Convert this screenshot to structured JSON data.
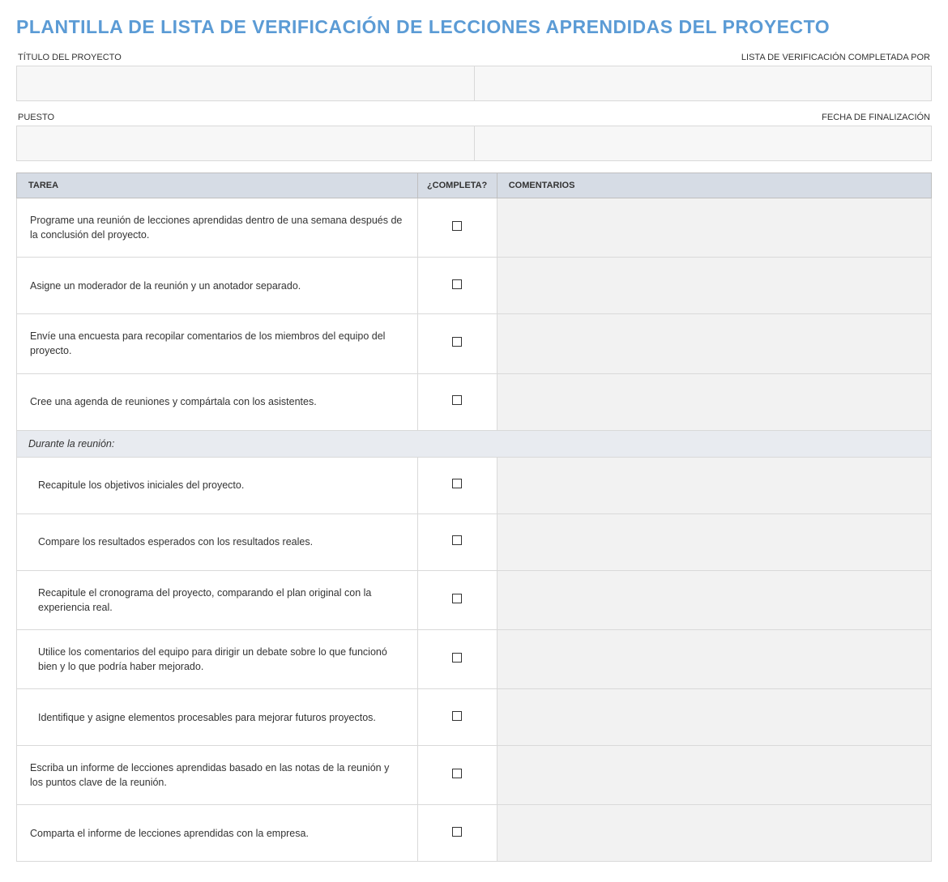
{
  "title": "PLANTILLA DE LISTA DE VERIFICACIÓN DE LECCIONES APRENDIDAS DEL PROYECTO",
  "meta": {
    "project_title_label": "TÍTULO DEL PROYECTO",
    "completed_by_label": "LISTA DE VERIFICACIÓN COMPLETADA POR",
    "position_label": "PUESTO",
    "completion_date_label": "FECHA DE FINALIZACIÓN",
    "project_title_value": "",
    "completed_by_value": "",
    "position_value": "",
    "completion_date_value": ""
  },
  "columns": {
    "task": "TAREA",
    "complete": "¿COMPLETA?",
    "comments": "COMENTARIOS"
  },
  "rows": [
    {
      "type": "task",
      "indent": false,
      "task": "Programe una reunión de lecciones aprendidas dentro de una semana después de la conclusión del proyecto.",
      "complete": false,
      "comment": ""
    },
    {
      "type": "task",
      "indent": false,
      "task": "Asigne un moderador de la reunión y un anotador separado.",
      "complete": false,
      "comment": ""
    },
    {
      "type": "task",
      "indent": false,
      "task": "Envíe una encuesta para recopilar comentarios de los miembros del equipo del proyecto.",
      "complete": false,
      "comment": ""
    },
    {
      "type": "task",
      "indent": false,
      "task": "Cree una agenda de reuniones y compártala con los asistentes.",
      "complete": false,
      "comment": ""
    },
    {
      "type": "section",
      "task": "Durante la reunión:"
    },
    {
      "type": "task",
      "indent": true,
      "task": "Recapitule los objetivos iniciales del proyecto.",
      "complete": false,
      "comment": ""
    },
    {
      "type": "task",
      "indent": true,
      "task": "Compare los resultados esperados con los resultados reales.",
      "complete": false,
      "comment": ""
    },
    {
      "type": "task",
      "indent": true,
      "task": "Recapitule el cronograma del proyecto, comparando el plan original con la experiencia real.",
      "complete": false,
      "comment": ""
    },
    {
      "type": "task",
      "indent": true,
      "task": "Utilice los comentarios del equipo para dirigir un debate sobre lo que funcionó bien y lo que podría haber mejorado.",
      "complete": false,
      "comment": ""
    },
    {
      "type": "task",
      "indent": true,
      "task": "Identifique y asigne elementos procesables para mejorar futuros proyectos.",
      "complete": false,
      "comment": ""
    },
    {
      "type": "task",
      "indent": false,
      "task": "Escriba un informe de lecciones aprendidas basado en las notas de la reunión y los puntos clave de la reunión.",
      "complete": false,
      "comment": ""
    },
    {
      "type": "task",
      "indent": false,
      "task": "Comparta el informe de lecciones aprendidas con la empresa.",
      "complete": false,
      "comment": ""
    }
  ],
  "style": {
    "title_color": "#5b9bd5",
    "header_bg": "#d6dce5",
    "section_bg": "#e8ebf0",
    "comment_bg": "#f2f2f2",
    "meta_bg": "#f7f7f7",
    "border_color": "#d9d9d9"
  }
}
